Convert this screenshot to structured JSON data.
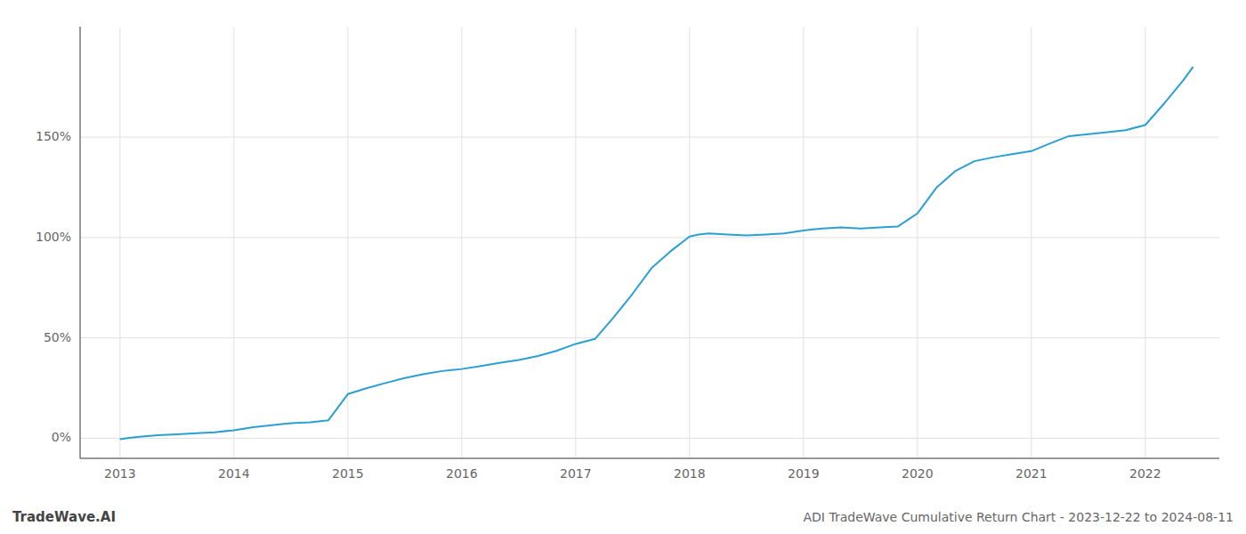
{
  "chart_data": {
    "type": "line",
    "title": "ADI TradeWave Cumulative Return Chart - 2023-12-22 to 2024-08-11",
    "annotations": [
      "TradeWave.AI"
    ],
    "color": "#2b9fd4",
    "grid": true,
    "x": [
      2013.0,
      2013.08,
      2013.17,
      2013.33,
      2013.5,
      2013.67,
      2013.83,
      2014.0,
      2014.17,
      2014.33,
      2014.5,
      2014.67,
      2014.83,
      2015.0,
      2015.17,
      2015.33,
      2015.5,
      2015.67,
      2015.83,
      2016.0,
      2016.17,
      2016.33,
      2016.5,
      2016.67,
      2016.83,
      2017.0,
      2017.17,
      2017.33,
      2017.5,
      2017.67,
      2017.83,
      2018.0,
      2018.08,
      2018.17,
      2018.33,
      2018.5,
      2018.67,
      2018.83,
      2019.0,
      2019.08,
      2019.17,
      2019.33,
      2019.5,
      2019.67,
      2019.83,
      2020.0,
      2020.17,
      2020.33,
      2020.5,
      2020.67,
      2020.83,
      2021.0,
      2021.17,
      2021.33,
      2021.5,
      2021.67,
      2021.83,
      2022.0,
      2022.17,
      2022.33,
      2022.42
    ],
    "values": [
      -0.5,
      0.2,
      0.8,
      1.5,
      2.0,
      2.5,
      3.0,
      4.0,
      5.5,
      6.5,
      7.5,
      8.0,
      9.0,
      22.0,
      25.0,
      27.5,
      30.0,
      32.0,
      33.5,
      34.5,
      36.0,
      37.5,
      39.0,
      41.0,
      43.5,
      47.0,
      49.5,
      60.0,
      72.0,
      85.0,
      93.0,
      100.5,
      101.5,
      102.0,
      101.5,
      101.0,
      101.5,
      102.0,
      103.5,
      104.0,
      104.5,
      105.0,
      104.5,
      105.0,
      105.5,
      112.0,
      125.0,
      133.0,
      138.0,
      140.0,
      141.5,
      143.0,
      147.0,
      150.5,
      151.5,
      152.5,
      153.5,
      156.0,
      167.0,
      178.0,
      185.0
    ],
    "xlim": [
      2012.65,
      2022.65
    ],
    "xticks": [
      2013,
      2014,
      2015,
      2016,
      2017,
      2018,
      2019,
      2020,
      2021,
      2022
    ],
    "ylim": [
      -10,
      205
    ],
    "yticks": [
      {
        "value": 0,
        "label": "0%"
      },
      {
        "value": 50,
        "label": "50%"
      },
      {
        "value": 100,
        "label": "100%"
      },
      {
        "value": 150,
        "label": "150%"
      }
    ]
  }
}
